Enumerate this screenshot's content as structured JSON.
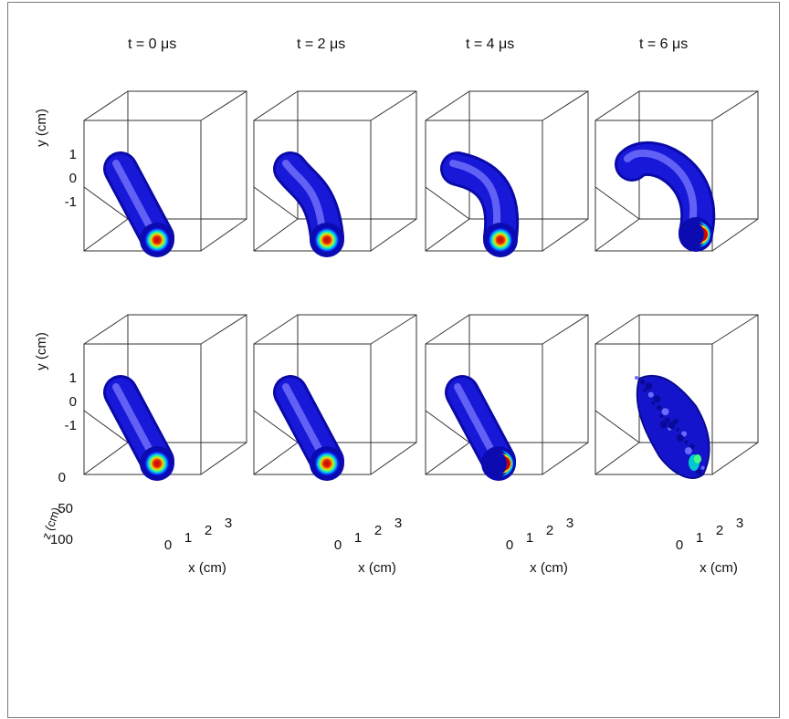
{
  "figure": {
    "column_titles": [
      "t = 0 μs",
      "t = 2 μs",
      "t = 4 μs",
      "t = 6 μs"
    ],
    "rows": 2,
    "axes": {
      "y_label": "y (cm)",
      "y_ticks": [
        "1",
        "0",
        "-1"
      ],
      "x_label": "x (cm)",
      "x_ticks": [
        "0",
        "1",
        "2",
        "3"
      ],
      "z_label": "z (cm)",
      "z_ticks": [
        "0",
        "50",
        "100"
      ]
    },
    "panels": [
      {
        "row": 1,
        "time": "t = 0 μs",
        "state": "straight-cylinder",
        "core": "centered"
      },
      {
        "row": 1,
        "time": "t = 2 μs",
        "state": "slight-kink",
        "core": "centered"
      },
      {
        "row": 1,
        "time": "t = 4 μs",
        "state": "kinked",
        "core": "centered"
      },
      {
        "row": 1,
        "time": "t = 6 μs",
        "state": "strongly-kinked",
        "core": "crescent"
      },
      {
        "row": 2,
        "time": "t = 0 μs",
        "state": "straight-cylinder",
        "core": "centered"
      },
      {
        "row": 2,
        "time": "t = 2 μs",
        "state": "straight-cylinder",
        "core": "centered"
      },
      {
        "row": 2,
        "time": "t = 4 μs",
        "state": "straight-cylinder",
        "core": "crescent"
      },
      {
        "row": 2,
        "time": "t = 6 μs",
        "state": "turbulent",
        "core": "fragmented"
      }
    ],
    "colors": {
      "tube": "#1414d2",
      "tube_highlight": "#8c8cff",
      "core_red": "#c80000",
      "core_yellow": "#ffd000",
      "core_cyan": "#00c8d0"
    }
  }
}
